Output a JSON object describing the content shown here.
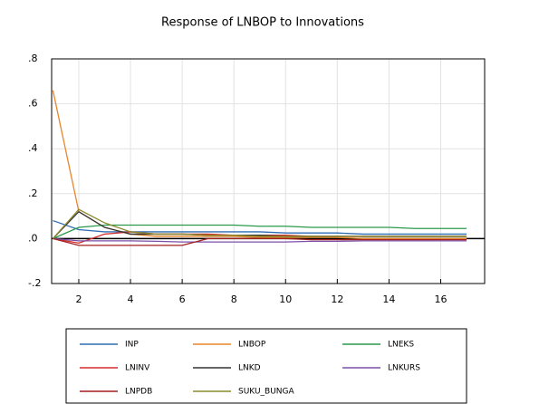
{
  "chart_data": {
    "type": "line",
    "title": "Response of LNBOP to Innovations",
    "x": [
      1,
      2,
      3,
      4,
      5,
      6,
      7,
      8,
      9,
      10,
      11,
      12,
      13,
      14,
      15,
      16,
      17
    ],
    "xlim": [
      0.95,
      17.7
    ],
    "xticks": [
      2,
      4,
      6,
      8,
      10,
      12,
      14,
      16
    ],
    "ylim": [
      -0.2,
      0.8
    ],
    "yticks": [
      {
        "value": -0.2,
        "label": "-.2"
      },
      {
        "value": 0,
        "label": ".0"
      },
      {
        "value": 0.2,
        "label": ".2"
      },
      {
        "value": 0.4,
        "label": ".4"
      },
      {
        "value": 0.6,
        "label": ".6"
      },
      {
        "value": 0.8,
        "label": ".8"
      }
    ],
    "grid": true,
    "series": [
      {
        "name": "INP",
        "color": "#2f6db5",
        "values": [
          0.08,
          0.04,
          0.03,
          0.03,
          0.03,
          0.03,
          0.03,
          0.03,
          0.03,
          0.025,
          0.025,
          0.025,
          0.02,
          0.02,
          0.02,
          0.02,
          0.02
        ]
      },
      {
        "name": "LNBOP",
        "color": "#e8862a",
        "values": [
          0.66,
          0.12,
          0.05,
          0.02,
          0.01,
          0.01,
          0.01,
          0.01,
          0.005,
          0.005,
          0.005,
          0.005,
          0.0,
          0.0,
          0.0,
          0.0,
          0.0
        ]
      },
      {
        "name": "LNEKS",
        "color": "#2a9a4a",
        "values": [
          0.0,
          0.05,
          0.06,
          0.06,
          0.06,
          0.06,
          0.06,
          0.06,
          0.055,
          0.055,
          0.05,
          0.05,
          0.05,
          0.05,
          0.045,
          0.045,
          0.045
        ]
      },
      {
        "name": "LNINV",
        "color": "#d62a2a",
        "values": [
          0.0,
          -0.02,
          0.02,
          0.03,
          0.02,
          0.02,
          0.02,
          0.015,
          0.015,
          0.015,
          0.01,
          0.01,
          0.01,
          0.01,
          0.01,
          0.01,
          0.01
        ]
      },
      {
        "name": "LNKD",
        "color": "#333333",
        "values": [
          0.0,
          0.12,
          0.05,
          0.02,
          0.02,
          0.02,
          0.015,
          0.015,
          0.015,
          0.01,
          0.01,
          0.01,
          0.01,
          0.01,
          0.01,
          0.01,
          0.01
        ]
      },
      {
        "name": "LNKURS",
        "color": "#7b4fa8",
        "values": [
          0.0,
          -0.01,
          -0.01,
          -0.01,
          -0.012,
          -0.015,
          -0.015,
          -0.015,
          -0.015,
          -0.015,
          -0.012,
          -0.012,
          -0.01,
          -0.01,
          -0.01,
          -0.01,
          -0.01
        ]
      },
      {
        "name": "LNPDB",
        "color": "#a31f1f",
        "values": [
          0.0,
          -0.03,
          -0.03,
          -0.03,
          -0.03,
          -0.03,
          0.0,
          0.0,
          0.0,
          0.0,
          -0.005,
          -0.005,
          -0.005,
          -0.005,
          -0.005,
          -0.005,
          -0.005
        ]
      },
      {
        "name": "SUKU_BUNGA",
        "color": "#8c8a2e",
        "values": [
          0.0,
          0.13,
          0.07,
          0.03,
          0.02,
          0.02,
          0.015,
          0.015,
          0.01,
          0.01,
          0.01,
          0.01,
          0.01,
          0.01,
          0.01,
          0.01,
          0.01
        ]
      }
    ]
  }
}
